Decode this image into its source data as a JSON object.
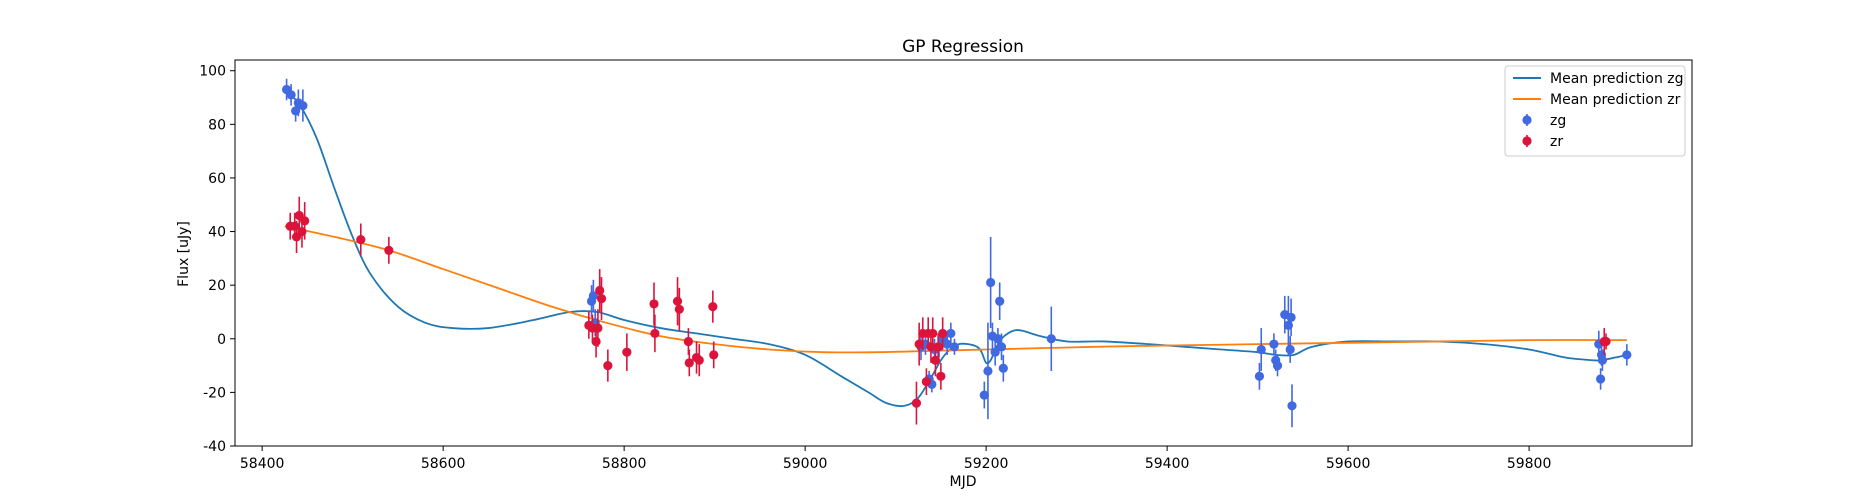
{
  "chart_data": {
    "type": "scatter",
    "title": "GP Regression",
    "xlabel": "MJD",
    "ylabel": "Flux [uJy]",
    "xlim": [
      58370,
      59980
    ],
    "ylim": [
      -40,
      104
    ],
    "xticks": [
      58400,
      58600,
      58800,
      59000,
      59200,
      59400,
      59600,
      59800
    ],
    "yticks": [
      -40,
      -20,
      0,
      20,
      40,
      60,
      80,
      100
    ],
    "grid": false,
    "legend_position": "top-right",
    "lines": [
      {
        "name": "Mean prediction zg",
        "color": "#1f77b4",
        "x": [
          58425,
          58440,
          58460,
          58480,
          58500,
          58520,
          58550,
          58580,
          58610,
          58650,
          58700,
          58740,
          58770,
          58800,
          58840,
          58880,
          58920,
          58960,
          59000,
          59040,
          59070,
          59090,
          59110,
          59125,
          59140,
          59150,
          59160,
          59170,
          59180,
          59190,
          59195,
          59200,
          59205,
          59210,
          59215,
          59220,
          59230,
          59240,
          59260,
          59290,
          59330,
          59380,
          59420,
          59460,
          59500,
          59520,
          59540,
          59560,
          59600,
          59650,
          59700,
          59750,
          59800,
          59840,
          59870,
          59880,
          59895,
          59908
        ],
        "y": [
          92,
          88,
          75,
          56,
          38,
          24,
          12,
          6,
          4,
          4,
          7,
          10,
          10,
          7,
          4,
          2,
          0,
          -2,
          -6,
          -14,
          -20,
          -24,
          -25,
          -22,
          -14,
          -8,
          -4,
          -2,
          -2,
          -3,
          -5,
          -9,
          -8,
          -4,
          -1,
          1,
          3,
          3,
          1,
          -1,
          -1,
          -2,
          -3,
          -4,
          -5,
          -6,
          -6,
          -3,
          -1,
          -1,
          -1,
          -2,
          -4,
          -7,
          -8,
          -8,
          -7,
          -6
        ]
      },
      {
        "name": "Mean prediction zr",
        "color": "#ff7f0e",
        "x": [
          58425,
          58480,
          58540,
          58600,
          58660,
          58720,
          58780,
          58840,
          58900,
          58960,
          59020,
          59080,
          59140,
          59200,
          59260,
          59320,
          59400,
          59500,
          59600,
          59700,
          59800,
          59908
        ],
        "y": [
          42,
          38,
          33,
          26,
          19,
          12,
          6,
          1,
          -2,
          -4,
          -5,
          -5,
          -4.5,
          -4,
          -3.5,
          -3,
          -2.5,
          -2,
          -1.5,
          -1,
          -0.5,
          -0.5
        ]
      }
    ],
    "series": [
      {
        "name": "zg",
        "color": "#4169e1",
        "points": [
          {
            "x": 58427,
            "y": 93,
            "err": 4
          },
          {
            "x": 58432,
            "y": 91,
            "err": 4
          },
          {
            "x": 58437,
            "y": 85,
            "err": 4
          },
          {
            "x": 58440,
            "y": 88,
            "err": 5
          },
          {
            "x": 58445,
            "y": 87,
            "err": 6
          },
          {
            "x": 58764,
            "y": 14,
            "err": 6
          },
          {
            "x": 58766,
            "y": 16,
            "err": 6
          },
          {
            "x": 58768,
            "y": 6,
            "err": 5
          },
          {
            "x": 59128,
            "y": -3,
            "err": 5
          },
          {
            "x": 59133,
            "y": -2,
            "err": 4
          },
          {
            "x": 59137,
            "y": -15,
            "err": 3
          },
          {
            "x": 59140,
            "y": -17,
            "err": 3
          },
          {
            "x": 59143,
            "y": -4,
            "err": 4
          },
          {
            "x": 59148,
            "y": -3,
            "err": 4
          },
          {
            "x": 59152,
            "y": 0,
            "err": 4
          },
          {
            "x": 59157,
            "y": -2,
            "err": 4
          },
          {
            "x": 59161,
            "y": 2,
            "err": 4
          },
          {
            "x": 59165,
            "y": -3,
            "err": 3
          },
          {
            "x": 59198,
            "y": -21,
            "err": 5
          },
          {
            "x": 59202,
            "y": -12,
            "err": 18
          },
          {
            "x": 59205,
            "y": 21,
            "err": 17
          },
          {
            "x": 59207,
            "y": 1,
            "err": 5
          },
          {
            "x": 59210,
            "y": -5,
            "err": 5
          },
          {
            "x": 59213,
            "y": 0,
            "err": 4
          },
          {
            "x": 59215,
            "y": 14,
            "err": 7
          },
          {
            "x": 59217,
            "y": -3,
            "err": 5
          },
          {
            "x": 59219,
            "y": -11,
            "err": 5
          },
          {
            "x": 59272,
            "y": 0,
            "err": 12
          },
          {
            "x": 59502,
            "y": -14,
            "err": 5
          },
          {
            "x": 59504,
            "y": -4,
            "err": 8
          },
          {
            "x": 59518,
            "y": -2,
            "err": 4
          },
          {
            "x": 59520,
            "y": -8,
            "err": 4
          },
          {
            "x": 59522,
            "y": -10,
            "err": 4
          },
          {
            "x": 59530,
            "y": 9,
            "err": 7
          },
          {
            "x": 59534,
            "y": 5,
            "err": 11
          },
          {
            "x": 59536,
            "y": -4,
            "err": 5
          },
          {
            "x": 59537,
            "y": 8,
            "err": 7
          },
          {
            "x": 59538,
            "y": -25,
            "err": 8
          },
          {
            "x": 59877,
            "y": -2,
            "err": 5
          },
          {
            "x": 59879,
            "y": -15,
            "err": 4
          },
          {
            "x": 59880,
            "y": -6,
            "err": 4
          },
          {
            "x": 59881,
            "y": -8,
            "err": 4
          },
          {
            "x": 59908,
            "y": -6,
            "err": 4
          }
        ]
      },
      {
        "name": "zr",
        "color": "#dc143c",
        "points": [
          {
            "x": 58431,
            "y": 42,
            "err": 5
          },
          {
            "x": 58436,
            "y": 42,
            "err": 5
          },
          {
            "x": 58438,
            "y": 38,
            "err": 6
          },
          {
            "x": 58441,
            "y": 46,
            "err": 7
          },
          {
            "x": 58444,
            "y": 40,
            "err": 6
          },
          {
            "x": 58447,
            "y": 44,
            "err": 7
          },
          {
            "x": 58509,
            "y": 37,
            "err": 6
          },
          {
            "x": 58540,
            "y": 33,
            "err": 5
          },
          {
            "x": 58761,
            "y": 5,
            "err": 5
          },
          {
            "x": 58765,
            "y": 4,
            "err": 5
          },
          {
            "x": 58769,
            "y": -1,
            "err": 6
          },
          {
            "x": 58771,
            "y": 4,
            "err": 7
          },
          {
            "x": 58773,
            "y": 18,
            "err": 8
          },
          {
            "x": 58775,
            "y": 15,
            "err": 8
          },
          {
            "x": 58782,
            "y": -10,
            "err": 6
          },
          {
            "x": 58803,
            "y": -5,
            "err": 7
          },
          {
            "x": 58833,
            "y": 13,
            "err": 8
          },
          {
            "x": 58834,
            "y": 2,
            "err": 7
          },
          {
            "x": 58859,
            "y": 14,
            "err": 9
          },
          {
            "x": 58861,
            "y": 11,
            "err": 8
          },
          {
            "x": 58871,
            "y": -1,
            "err": 5
          },
          {
            "x": 58872,
            "y": -9,
            "err": 5
          },
          {
            "x": 58880,
            "y": -7,
            "err": 6
          },
          {
            "x": 58883,
            "y": -8,
            "err": 6
          },
          {
            "x": 58898,
            "y": 12,
            "err": 6
          },
          {
            "x": 58899,
            "y": -6,
            "err": 5
          },
          {
            "x": 59123,
            "y": -24,
            "err": 8
          },
          {
            "x": 59126,
            "y": -2,
            "err": 8
          },
          {
            "x": 59130,
            "y": 2,
            "err": 6
          },
          {
            "x": 59134,
            "y": -16,
            "err": 5
          },
          {
            "x": 59136,
            "y": 2,
            "err": 6
          },
          {
            "x": 59139,
            "y": -3,
            "err": 6
          },
          {
            "x": 59141,
            "y": 2,
            "err": 6
          },
          {
            "x": 59144,
            "y": -8,
            "err": 6
          },
          {
            "x": 59147,
            "y": -3,
            "err": 5
          },
          {
            "x": 59150,
            "y": -14,
            "err": 5
          },
          {
            "x": 59152,
            "y": 2,
            "err": 6
          },
          {
            "x": 59883,
            "y": -1,
            "err": 5
          },
          {
            "x": 59885,
            "y": -1,
            "err": 3
          }
        ]
      }
    ]
  }
}
